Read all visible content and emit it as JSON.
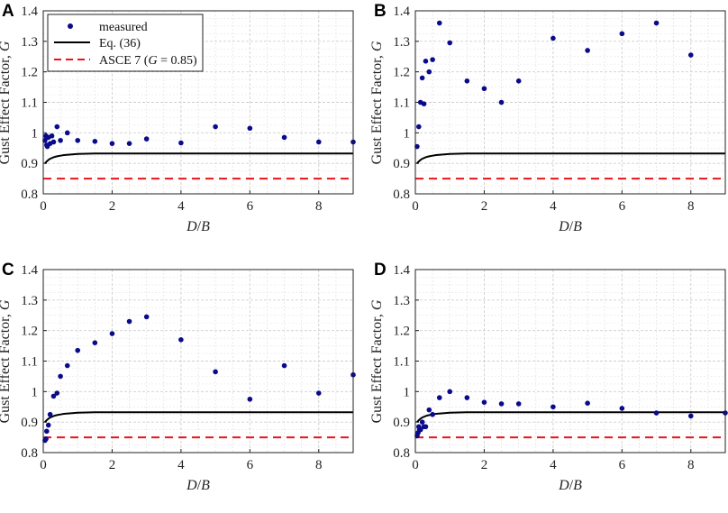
{
  "chart_data": {
    "legend": {
      "placement": "top-left (panel A)",
      "items": [
        {
          "label": "measured",
          "kind": "marker",
          "color": "#0a0a8c"
        },
        {
          "label": "Eq. (36)",
          "kind": "line",
          "color": "#000000"
        },
        {
          "label_prefix": "ASCE 7 (",
          "label_italic": "G",
          "label_suffix": " = 0.85)",
          "kind": "dashed",
          "color": "#e8141c"
        }
      ]
    },
    "axes": {
      "xlabel_parts": [
        "D",
        "/",
        "B"
      ],
      "ylabel_prefix": "Gust Effect Factor, ",
      "ylabel_var": "G",
      "xlim": [
        0,
        9
      ],
      "ylim": [
        0.8,
        1.4
      ],
      "xticks": [
        0,
        2,
        4,
        6,
        8
      ],
      "xtick_labels": [
        "0",
        "2",
        "4",
        "6",
        "8"
      ],
      "yticks": [
        0.8,
        0.9,
        1.0,
        1.1,
        1.2,
        1.3,
        1.4
      ],
      "ytick_labels": [
        "0.8",
        "0.9",
        "1",
        "1.1",
        "1.2",
        "1.3",
        "1.4"
      ],
      "minor_grid": true
    },
    "eq36_curve": {
      "x": [
        0.05,
        0.1,
        0.15,
        0.2,
        0.3,
        0.4,
        0.5,
        0.6,
        0.8,
        1.0,
        1.5,
        2,
        3,
        4,
        5,
        6,
        7,
        8,
        9
      ],
      "y": [
        0.9,
        0.906,
        0.911,
        0.915,
        0.92,
        0.923,
        0.925,
        0.927,
        0.929,
        0.931,
        0.932,
        0.932,
        0.932,
        0.932,
        0.932,
        0.932,
        0.932,
        0.932,
        0.932
      ],
      "color": "#000000"
    },
    "asce7_value": 0.85,
    "asce7_color": "#e8141c",
    "marker_color": "#0a0a8c",
    "panels": [
      {
        "letter": "A",
        "type": "scatter",
        "measured": {
          "x": [
            0.05,
            0.08,
            0.1,
            0.12,
            0.15,
            0.2,
            0.25,
            0.3,
            0.4,
            0.5,
            0.7,
            1,
            1.5,
            2,
            2.5,
            3,
            4,
            5,
            6,
            7,
            8,
            9
          ],
          "y": [
            0.975,
            0.99,
            0.96,
            0.955,
            0.985,
            0.965,
            0.99,
            0.97,
            1.02,
            0.975,
            1.0,
            0.975,
            0.972,
            0.965,
            0.965,
            0.98,
            0.967,
            1.02,
            1.015,
            0.985,
            0.97,
            0.97
          ]
        }
      },
      {
        "letter": "B",
        "type": "scatter",
        "measured": {
          "x": [
            0.05,
            0.1,
            0.15,
            0.2,
            0.25,
            0.3,
            0.4,
            0.5,
            0.7,
            1,
            1.5,
            2,
            2.5,
            3,
            4,
            5,
            6,
            7,
            8
          ],
          "y": [
            0.955,
            1.02,
            1.1,
            1.18,
            1.095,
            1.235,
            1.2,
            1.24,
            1.36,
            1.295,
            1.17,
            1.145,
            1.1,
            1.17,
            1.31,
            1.27,
            1.325,
            1.36,
            1.255
          ]
        }
      },
      {
        "letter": "C",
        "type": "scatter",
        "measured": {
          "x": [
            0.05,
            0.08,
            0.1,
            0.15,
            0.2,
            0.3,
            0.4,
            0.5,
            0.7,
            1,
            1.5,
            2,
            2.5,
            3,
            4,
            5,
            6,
            7,
            8,
            9
          ],
          "y": [
            0.84,
            0.845,
            0.87,
            0.89,
            0.925,
            0.985,
            0.995,
            1.05,
            1.085,
            1.135,
            1.16,
            1.19,
            1.23,
            1.245,
            1.17,
            1.065,
            0.975,
            1.085,
            0.995,
            1.055
          ]
        }
      },
      {
        "letter": "D",
        "type": "scatter",
        "measured": {
          "x": [
            0.05,
            0.08,
            0.1,
            0.12,
            0.15,
            0.2,
            0.25,
            0.3,
            0.4,
            0.5,
            0.7,
            1,
            1.5,
            2,
            2.5,
            3,
            4,
            5,
            6,
            7,
            8,
            9
          ],
          "y": [
            0.855,
            0.865,
            0.885,
            0.875,
            0.875,
            0.9,
            0.885,
            0.885,
            0.94,
            0.925,
            0.98,
            1.0,
            0.98,
            0.965,
            0.96,
            0.96,
            0.95,
            0.962,
            0.945,
            0.93,
            0.92,
            0.93
          ]
        }
      }
    ]
  }
}
